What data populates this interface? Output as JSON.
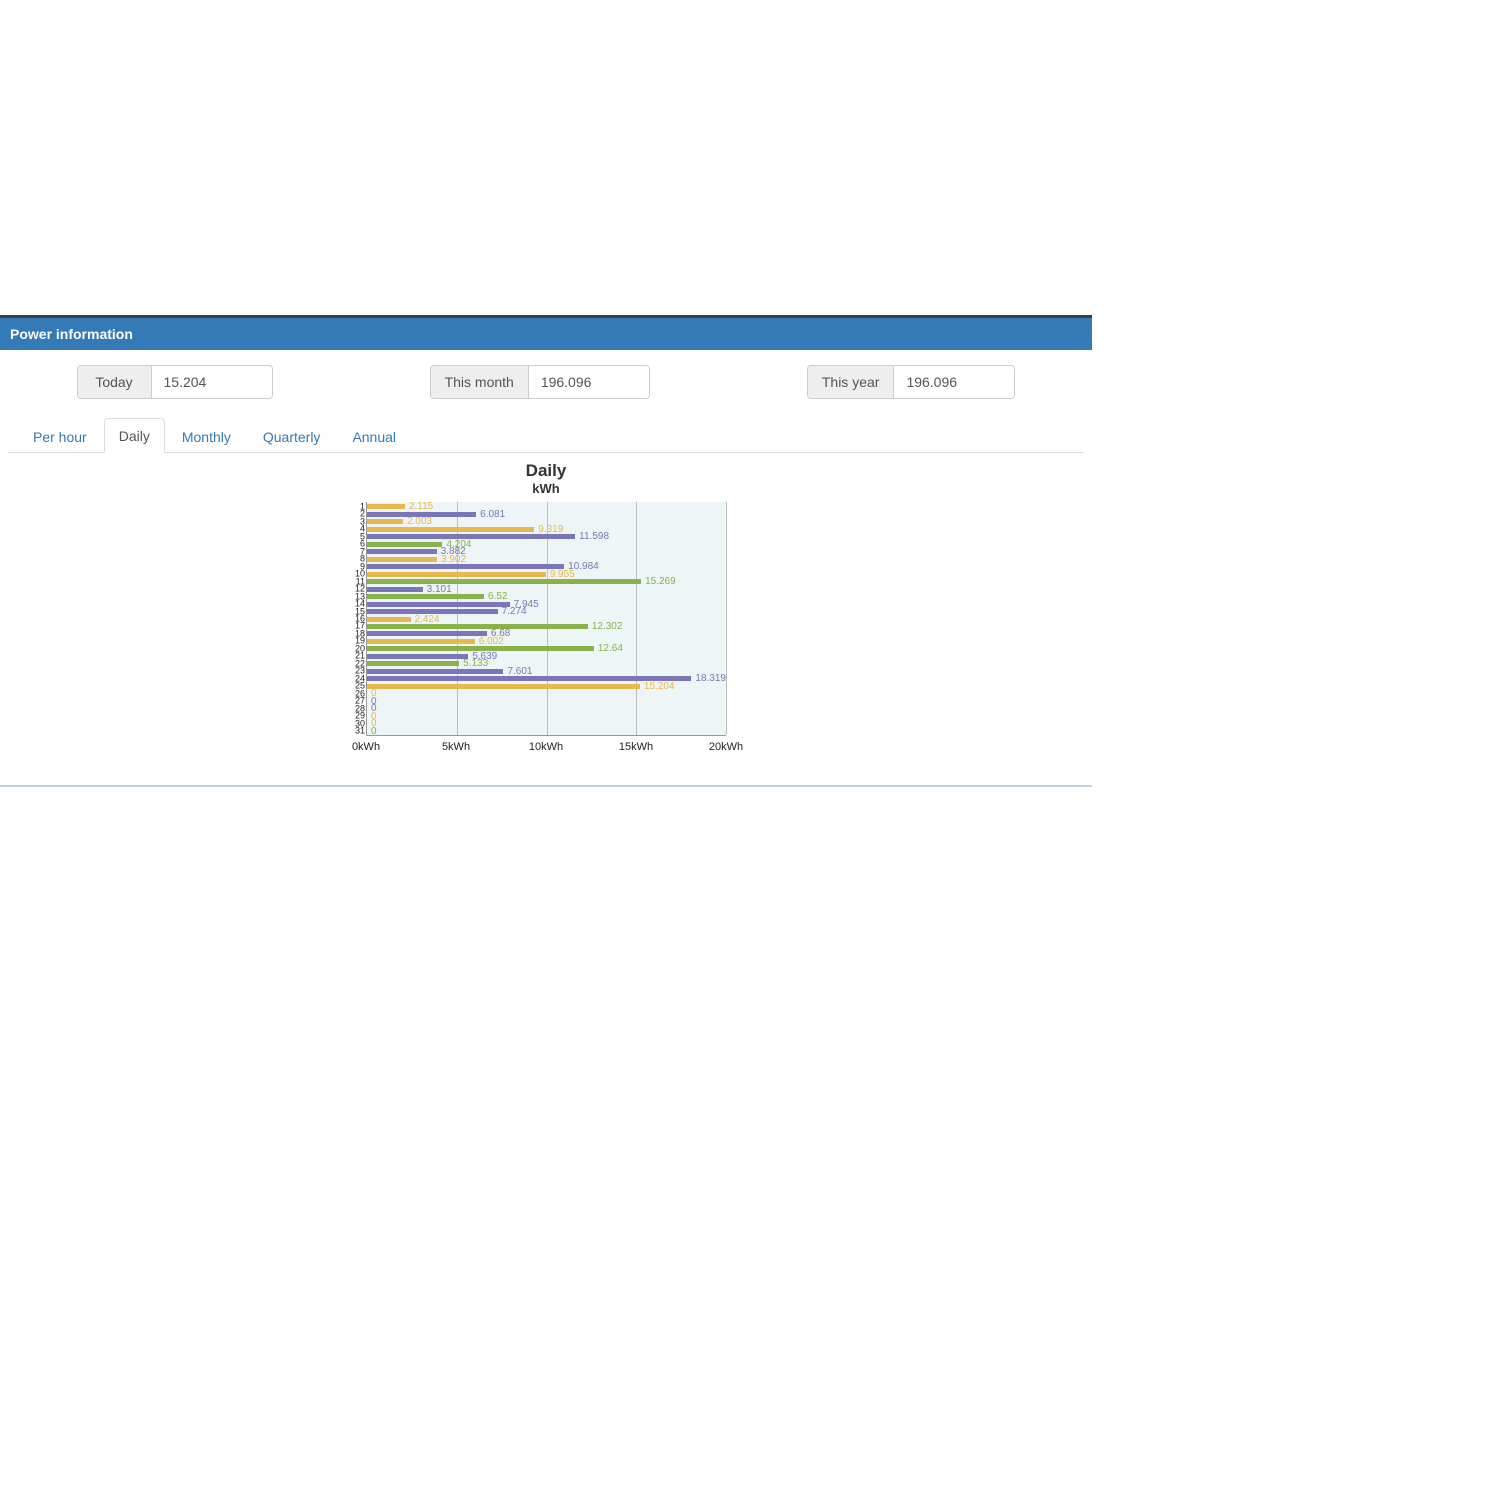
{
  "panel": {
    "title": "Power information"
  },
  "stats": [
    {
      "label": "Today",
      "value": "15.204"
    },
    {
      "label": "This month",
      "value": "196.096"
    },
    {
      "label": "This year",
      "value": "196.096"
    }
  ],
  "tabs": [
    {
      "label": "Per hour",
      "active": false
    },
    {
      "label": "Daily",
      "active": true
    },
    {
      "label": "Monthly",
      "active": false
    },
    {
      "label": "Quarterly",
      "active": false
    },
    {
      "label": "Annual",
      "active": false
    }
  ],
  "chart": {
    "title": "Daily",
    "subtitle": "kWh",
    "type": "horizontal-bar",
    "xmin": 0,
    "xmax": 20,
    "xunit": "kWh",
    "xticks": [
      0,
      5,
      10,
      15,
      20
    ],
    "plot_bg": "#eef5f6",
    "grid_color": "#bdbdbd",
    "colors": {
      "yellow": "#e7b84e",
      "purple": "#7a76b7",
      "green": "#8ab24a"
    },
    "bars": [
      {
        "day": 1,
        "value": 2.115,
        "colorKey": "yellow"
      },
      {
        "day": 2,
        "value": 6.081,
        "colorKey": "purple"
      },
      {
        "day": 3,
        "value": 2.003,
        "colorKey": "yellow"
      },
      {
        "day": 4,
        "value": 9.319,
        "colorKey": "yellow"
      },
      {
        "day": 5,
        "value": 11.598,
        "colorKey": "purple"
      },
      {
        "day": 6,
        "value": 4.204,
        "colorKey": "green"
      },
      {
        "day": 7,
        "value": 3.882,
        "colorKey": "purple"
      },
      {
        "day": 8,
        "value": 3.902,
        "colorKey": "yellow"
      },
      {
        "day": 9,
        "value": 10.984,
        "colorKey": "purple"
      },
      {
        "day": 10,
        "value": 9.955,
        "colorKey": "yellow"
      },
      {
        "day": 11,
        "value": 15.269,
        "colorKey": "green"
      },
      {
        "day": 12,
        "value": 3.101,
        "colorKey": "purple"
      },
      {
        "day": 13,
        "value": 6.52,
        "colorKey": "green"
      },
      {
        "day": 14,
        "value": 7.945,
        "colorKey": "purple"
      },
      {
        "day": 15,
        "value": 7.274,
        "colorKey": "purple"
      },
      {
        "day": 16,
        "value": 2.424,
        "colorKey": "yellow"
      },
      {
        "day": 17,
        "value": 12.302,
        "colorKey": "green"
      },
      {
        "day": 18,
        "value": 6.68,
        "colorKey": "purple"
      },
      {
        "day": 19,
        "value": 6.002,
        "colorKey": "yellow"
      },
      {
        "day": 20,
        "value": 12.64,
        "colorKey": "green"
      },
      {
        "day": 21,
        "value": 5.639,
        "colorKey": "purple"
      },
      {
        "day": 22,
        "value": 5.133,
        "colorKey": "green"
      },
      {
        "day": 23,
        "value": 7.601,
        "colorKey": "purple"
      },
      {
        "day": 24,
        "value": 18.319,
        "colorKey": "purple"
      },
      {
        "day": 25,
        "value": 15.204,
        "colorKey": "yellow"
      },
      {
        "day": 26,
        "value": 0,
        "colorKey": "yellow"
      },
      {
        "day": 27,
        "value": 0,
        "colorKey": "purple"
      },
      {
        "day": 28,
        "value": 0,
        "colorKey": "purple"
      },
      {
        "day": 29,
        "value": 0,
        "colorKey": "yellow"
      },
      {
        "day": 30,
        "value": 0,
        "colorKey": "yellow"
      },
      {
        "day": 31,
        "value": 0,
        "colorKey": "green"
      }
    ]
  }
}
